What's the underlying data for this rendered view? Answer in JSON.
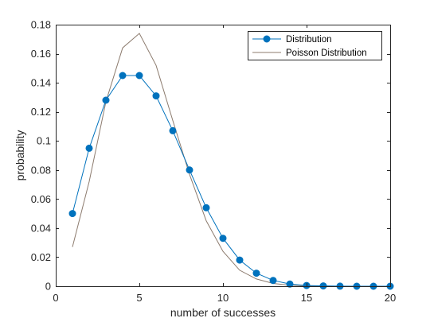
{
  "chart_data": {
    "type": "line",
    "title": "",
    "xlabel": "number of successes",
    "ylabel": "probability",
    "xlim": [
      0,
      20
    ],
    "ylim": [
      0,
      0.18
    ],
    "grid": false,
    "legend_position": "top-right",
    "x_ticks": [
      0,
      5,
      10,
      15,
      20
    ],
    "x_tick_labels": [
      "0",
      "5",
      "10",
      "15",
      "20"
    ],
    "y_ticks": [
      0,
      0.02,
      0.04,
      0.06,
      0.08,
      0.1,
      0.12,
      0.14,
      0.16,
      0.18
    ],
    "y_tick_labels": [
      "0",
      "0.02",
      "0.04",
      "0.06",
      "0.08",
      "0.1",
      "0.12",
      "0.14",
      "0.16",
      "0.18"
    ],
    "series": [
      {
        "name": "Distribution",
        "color": "#0072BD",
        "marker": "circle",
        "x": [
          1,
          2,
          3,
          4,
          5,
          6,
          7,
          8,
          9,
          10,
          11,
          12,
          13,
          14,
          15,
          16,
          17,
          18,
          19,
          20
        ],
        "values": [
          0.05,
          0.095,
          0.128,
          0.145,
          0.145,
          0.131,
          0.107,
          0.08,
          0.054,
          0.033,
          0.018,
          0.009,
          0.004,
          0.0015,
          0.0005,
          0.0002,
          5e-05,
          1e-05,
          0.0,
          0.0
        ]
      },
      {
        "name": "Poisson Distribution",
        "color": "#8C7B6E",
        "marker": "none",
        "x": [
          1,
          2,
          3,
          4,
          5,
          6,
          7,
          8,
          9,
          10,
          11,
          12,
          13,
          14,
          15,
          16,
          17,
          18,
          19,
          20
        ],
        "values": [
          0.027,
          0.072,
          0.127,
          0.164,
          0.174,
          0.152,
          0.114,
          0.077,
          0.045,
          0.024,
          0.011,
          0.005,
          0.0019,
          0.0007,
          0.0002,
          0.0001,
          0.0,
          0.0,
          0.0,
          0.0
        ]
      }
    ]
  }
}
